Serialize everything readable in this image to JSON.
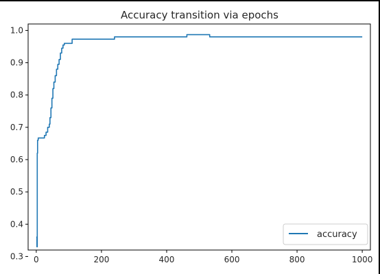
{
  "chart_data": {
    "type": "line",
    "title": "Accuracy transition via epochs",
    "xlabel": "",
    "ylabel": "",
    "xlim": [
      -25,
      1025
    ],
    "ylim": [
      0.32,
      1.02
    ],
    "xticks": [
      0,
      200,
      400,
      600,
      800,
      1000
    ],
    "yticks": [
      0.3,
      0.4,
      0.5,
      0.6,
      0.7,
      0.8,
      0.9,
      1.0
    ],
    "xtick_labels": [
      "0",
      "200",
      "400",
      "600",
      "800",
      "1000"
    ],
    "ytick_labels": [
      "0.3",
      "0.4",
      "0.5",
      "0.6",
      "0.7",
      "0.8",
      "0.9",
      "1.0"
    ],
    "grid": false,
    "legend_position": "lower right",
    "series": [
      {
        "name": "accuracy",
        "color": "#1f77b4",
        "step": true,
        "points": [
          [
            0,
            0.36
          ],
          [
            2,
            0.33
          ],
          [
            3,
            0.62
          ],
          [
            4,
            0.66
          ],
          [
            6,
            0.667
          ],
          [
            20,
            0.667
          ],
          [
            25,
            0.675
          ],
          [
            30,
            0.685
          ],
          [
            35,
            0.7
          ],
          [
            40,
            0.71
          ],
          [
            42,
            0.73
          ],
          [
            45,
            0.76
          ],
          [
            48,
            0.79
          ],
          [
            51,
            0.82
          ],
          [
            54,
            0.84
          ],
          [
            58,
            0.86
          ],
          [
            62,
            0.88
          ],
          [
            66,
            0.895
          ],
          [
            70,
            0.91
          ],
          [
            74,
            0.93
          ],
          [
            78,
            0.945
          ],
          [
            82,
            0.955
          ],
          [
            86,
            0.96
          ],
          [
            100,
            0.96
          ],
          [
            110,
            0.973
          ],
          [
            235,
            0.973
          ],
          [
            240,
            0.98
          ],
          [
            460,
            0.98
          ],
          [
            462,
            0.987
          ],
          [
            530,
            0.987
          ],
          [
            532,
            0.98
          ],
          [
            1000,
            0.98
          ]
        ]
      }
    ]
  }
}
